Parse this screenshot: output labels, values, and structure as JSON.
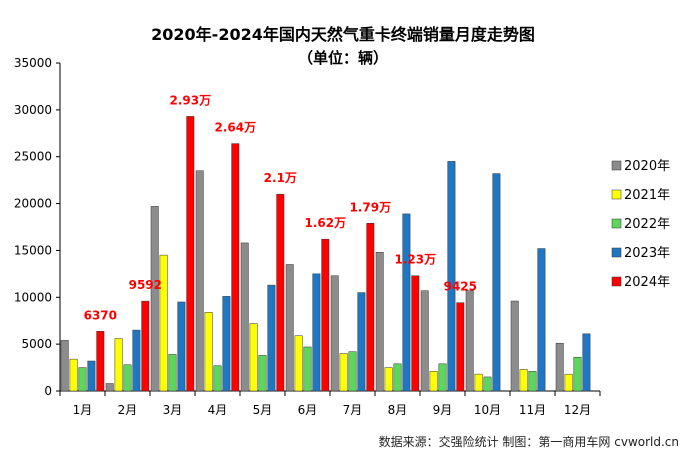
{
  "chart_data": {
    "type": "bar",
    "title": "2020年-2024年国内天然气重卡终端销量月度走势图",
    "subtitle": "（单位：辆）",
    "categories": [
      "1月",
      "2月",
      "3月",
      "4月",
      "5月",
      "6月",
      "7月",
      "8月",
      "9月",
      "10月",
      "11月",
      "12月"
    ],
    "series": [
      {
        "name": "2020年",
        "color": "#8c8c8c",
        "values": [
          5400,
          800,
          19700,
          23500,
          15800,
          13500,
          12300,
          14800,
          10700,
          10700,
          9600,
          5100
        ]
      },
      {
        "name": "2021年",
        "color": "#ffff00",
        "values": [
          3400,
          5600,
          14500,
          8400,
          7200,
          5900,
          4000,
          2500,
          2100,
          1800,
          2300,
          1800
        ]
      },
      {
        "name": "2022年",
        "color": "#5cd65c",
        "values": [
          2500,
          2800,
          3900,
          2700,
          3800,
          4700,
          4200,
          2900,
          2900,
          1500,
          2100,
          3600
        ]
      },
      {
        "name": "2023年",
        "color": "#1f77c4",
        "values": [
          3200,
          6500,
          9500,
          10100,
          11300,
          12500,
          10500,
          18900,
          24500,
          23200,
          15200,
          6100
        ]
      },
      {
        "name": "2024年",
        "color": "#ff0000",
        "values": [
          6370,
          9592,
          29300,
          26400,
          21000,
          16200,
          17900,
          12300,
          9425,
          null,
          null,
          null
        ]
      }
    ],
    "annotations": [
      "6370",
      "9592",
      "2.93万",
      "2.64万",
      "2.1万",
      "1.62万",
      "1.79万",
      "1.23万",
      "9425"
    ],
    "ylim": [
      0,
      35000
    ],
    "yticks": [
      "0",
      "5000",
      "10000",
      "15000",
      "20000",
      "25000",
      "30000",
      "35000"
    ],
    "grid": false,
    "legend_position": "right",
    "source_text": "数据来源：交强险统计   制图：第一商用车网 cvworld.cn"
  }
}
